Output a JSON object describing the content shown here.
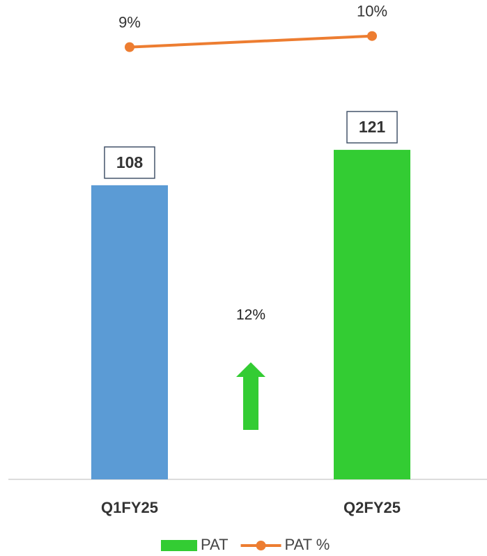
{
  "chart_data": {
    "type": "bar",
    "categories": [
      "Q1FY25",
      "Q2FY25"
    ],
    "series": [
      {
        "name": "PAT",
        "type": "bar",
        "color": "#33cc33",
        "colors": [
          "#5b9bd5",
          "#33cc33"
        ],
        "values": [
          108,
          121
        ]
      },
      {
        "name": "PAT %",
        "type": "line",
        "axis": "y2",
        "color": "#ed7d31",
        "values": [
          9,
          10
        ],
        "value_labels": [
          "9%",
          "10%"
        ]
      }
    ],
    "annotation": "12%",
    "ylim": [
      0,
      175
    ],
    "y2lim": [
      -30,
      13
    ],
    "legend": "bottom"
  }
}
